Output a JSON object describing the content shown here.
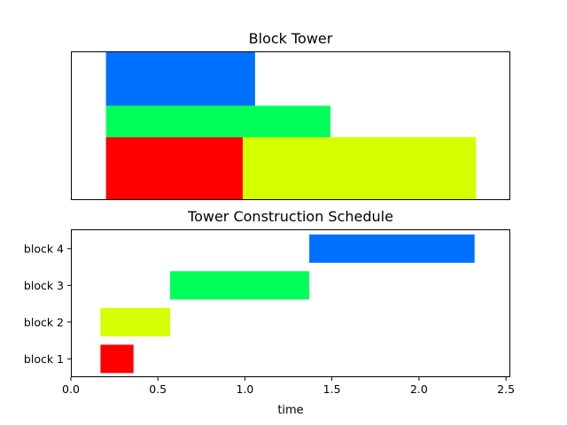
{
  "chart_data": [
    {
      "type": "bar",
      "title": "Block Tower",
      "xlabel": "",
      "ylabel": "",
      "axes_visible": false,
      "xlim": [
        0,
        2.5
      ],
      "ylim": [
        0,
        4.7
      ],
      "blocks": [
        {
          "x_start": 0.2,
          "x_end": 0.98,
          "y_start": 0.0,
          "y_end": 2.0,
          "color": "#ff0000"
        },
        {
          "x_start": 0.98,
          "x_end": 2.31,
          "y_start": 0.0,
          "y_end": 2.0,
          "color": "#d4ff00"
        },
        {
          "x_start": 0.2,
          "x_end": 1.48,
          "y_start": 2.0,
          "y_end": 3.0,
          "color": "#00ff59"
        },
        {
          "x_start": 0.2,
          "x_end": 1.05,
          "y_start": 3.0,
          "y_end": 4.7,
          "color": "#0070ff"
        }
      ]
    },
    {
      "type": "bar",
      "orientation": "horizontal",
      "title": "Tower Construction Schedule",
      "xlabel": "time",
      "ylabel": "",
      "xlim": [
        0,
        2.52
      ],
      "xticks": [
        0.0,
        0.5,
        1.0,
        1.5,
        2.0,
        2.5
      ],
      "xtick_labels": [
        "0.0",
        "0.5",
        "1.0",
        "1.5",
        "2.0",
        "2.5"
      ],
      "categories": [
        "block 1",
        "block 2",
        "block 3",
        "block 4"
      ],
      "intervals": [
        {
          "start": 0.17,
          "end": 0.36,
          "color": "#ff0000"
        },
        {
          "start": 0.17,
          "end": 0.57,
          "color": "#d4ff00"
        },
        {
          "start": 0.57,
          "end": 1.37,
          "color": "#00ff59"
        },
        {
          "start": 1.37,
          "end": 2.32,
          "color": "#0070ff"
        }
      ]
    }
  ]
}
